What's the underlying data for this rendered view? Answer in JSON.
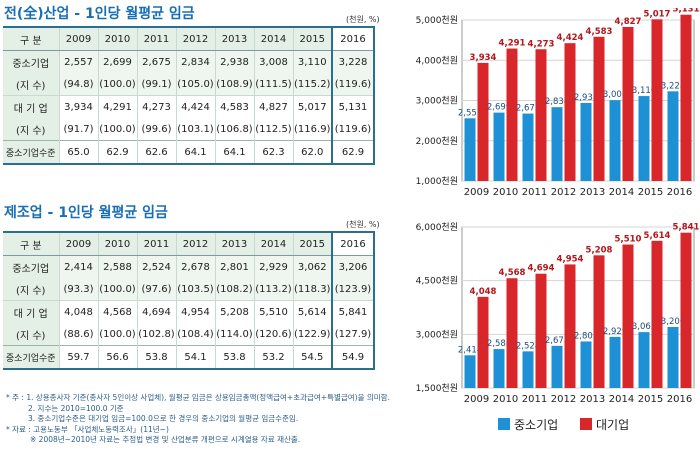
{
  "tables": [
    {
      "title": "전(全)산업 - 1인당 월평균 임금",
      "unit": "(천원, %)",
      "header": [
        "구 분",
        "2009",
        "2010",
        "2011",
        "2012",
        "2013",
        "2014",
        "2015",
        "2016"
      ],
      "rows": [
        {
          "label": "중소기업",
          "values": [
            "2,557",
            "2,699",
            "2,675",
            "2,834",
            "2,938",
            "3,008",
            "3,110",
            "3,228"
          ]
        },
        {
          "label": "(지    수)",
          "values": [
            "(94.8)",
            "(100.0)",
            "(99.1)",
            "(105.0)",
            "(108.9)",
            "(111.5)",
            "(115.2)",
            "(119.6)"
          ]
        },
        {
          "label": "대 기 업",
          "values": [
            "3,934",
            "4,291",
            "4,273",
            "4,424",
            "4,583",
            "4,827",
            "5,017",
            "5,131"
          ]
        },
        {
          "label": "(지    수)",
          "values": [
            "(91.7)",
            "(100.0)",
            "(99.6)",
            "(103.1)",
            "(106.8)",
            "(112.5)",
            "(116.9)",
            "(119.6)"
          ]
        },
        {
          "label": "중소기업수준",
          "values": [
            "65.0",
            "62.9",
            "62.6",
            "64.1",
            "64.1",
            "62.3",
            "62.0",
            "62.9"
          ]
        }
      ]
    },
    {
      "title": "제조업 - 1인당 월평균 임금",
      "unit": "(천원, %)",
      "header": [
        "구 분",
        "2009",
        "2010",
        "2011",
        "2012",
        "2013",
        "2014",
        "2015",
        "2016"
      ],
      "rows": [
        {
          "label": "중소기업",
          "values": [
            "2,414",
            "2,588",
            "2,524",
            "2,678",
            "2,801",
            "2,929",
            "3,062",
            "3,206"
          ]
        },
        {
          "label": "(지    수)",
          "values": [
            "(93.3)",
            "(100.0)",
            "(97.6)",
            "(103.5)",
            "(108.2)",
            "(113.2)",
            "(118.3)",
            "(123.9)"
          ]
        },
        {
          "label": "대 기 업",
          "values": [
            "4,048",
            "4,568",
            "4,694",
            "4,954",
            "5,208",
            "5,510",
            "5,614",
            "5,841"
          ]
        },
        {
          "label": "(지    수)",
          "values": [
            "(88.6)",
            "(100.0)",
            "(102.8)",
            "(108.4)",
            "(114.0)",
            "(120.6)",
            "(122.9)",
            "(127.9)"
          ]
        },
        {
          "label": "중소기업수준",
          "values": [
            "59.7",
            "56.6",
            "53.8",
            "54.1",
            "53.8",
            "53.2",
            "54.5",
            "54.9"
          ]
        }
      ]
    }
  ],
  "chart_data": [
    {
      "type": "bar",
      "categories": [
        "2009",
        "2010",
        "2011",
        "2012",
        "2013",
        "2014",
        "2015",
        "2016"
      ],
      "series": [
        {
          "name": "중소기업",
          "values": [
            2557,
            2699,
            2675,
            2834,
            2938,
            3008,
            3110,
            3228
          ],
          "color": "#1e90d6"
        },
        {
          "name": "대기업",
          "values": [
            3934,
            4291,
            4273,
            4424,
            4583,
            4827,
            5017,
            5131
          ],
          "color": "#d9262b"
        }
      ],
      "ylim": [
        1000,
        5000
      ],
      "yticks": [
        1000,
        2000,
        3000,
        4000,
        5000
      ],
      "ytick_labels": [
        "1,000천원",
        "2,000천원",
        "3,000천원",
        "4,000천원",
        "5,000천원"
      ],
      "grid": true
    },
    {
      "type": "bar",
      "categories": [
        "2009",
        "2010",
        "2011",
        "2012",
        "2013",
        "2014",
        "2015",
        "2016"
      ],
      "series": [
        {
          "name": "중소기업",
          "values": [
            2414,
            2588,
            2524,
            2678,
            2801,
            2929,
            3062,
            3206
          ],
          "color": "#1e90d6"
        },
        {
          "name": "대기업",
          "values": [
            4048,
            4568,
            4694,
            4954,
            5208,
            5510,
            5614,
            5841
          ],
          "color": "#d9262b"
        }
      ],
      "ylim": [
        1500,
        6000
      ],
      "yticks": [
        1500,
        3000,
        4500,
        6000
      ],
      "ytick_labels": [
        "1,500천원",
        "3,000천원",
        "4,500천원",
        "6,000천원"
      ],
      "grid": true
    }
  ],
  "legend": [
    {
      "label": "중소기업",
      "color": "#1e90d6"
    },
    {
      "label": "대기업",
      "color": "#d9262b"
    }
  ],
  "notes": [
    "* 주 : 1. 상용종사자 기준(종사자 5인이상 사업체), 월평균 임금은 상용임금총액(정액급여+초과급여+특별급여)을 의미함.",
    "2. 지수는 2010=100.0 기준",
    "3. 중소기업수준은 대기업 임금=100.0으로 한 경우의 중소기업의 월평균 임금수준임.",
    "* 자료 : 고용노동부 「사업체노동력조사」(11년~)",
    "※ 2008년~2010년 자료는 추정법 변경 및 산업분류 개편으로 시계열용 자료 재산출."
  ]
}
